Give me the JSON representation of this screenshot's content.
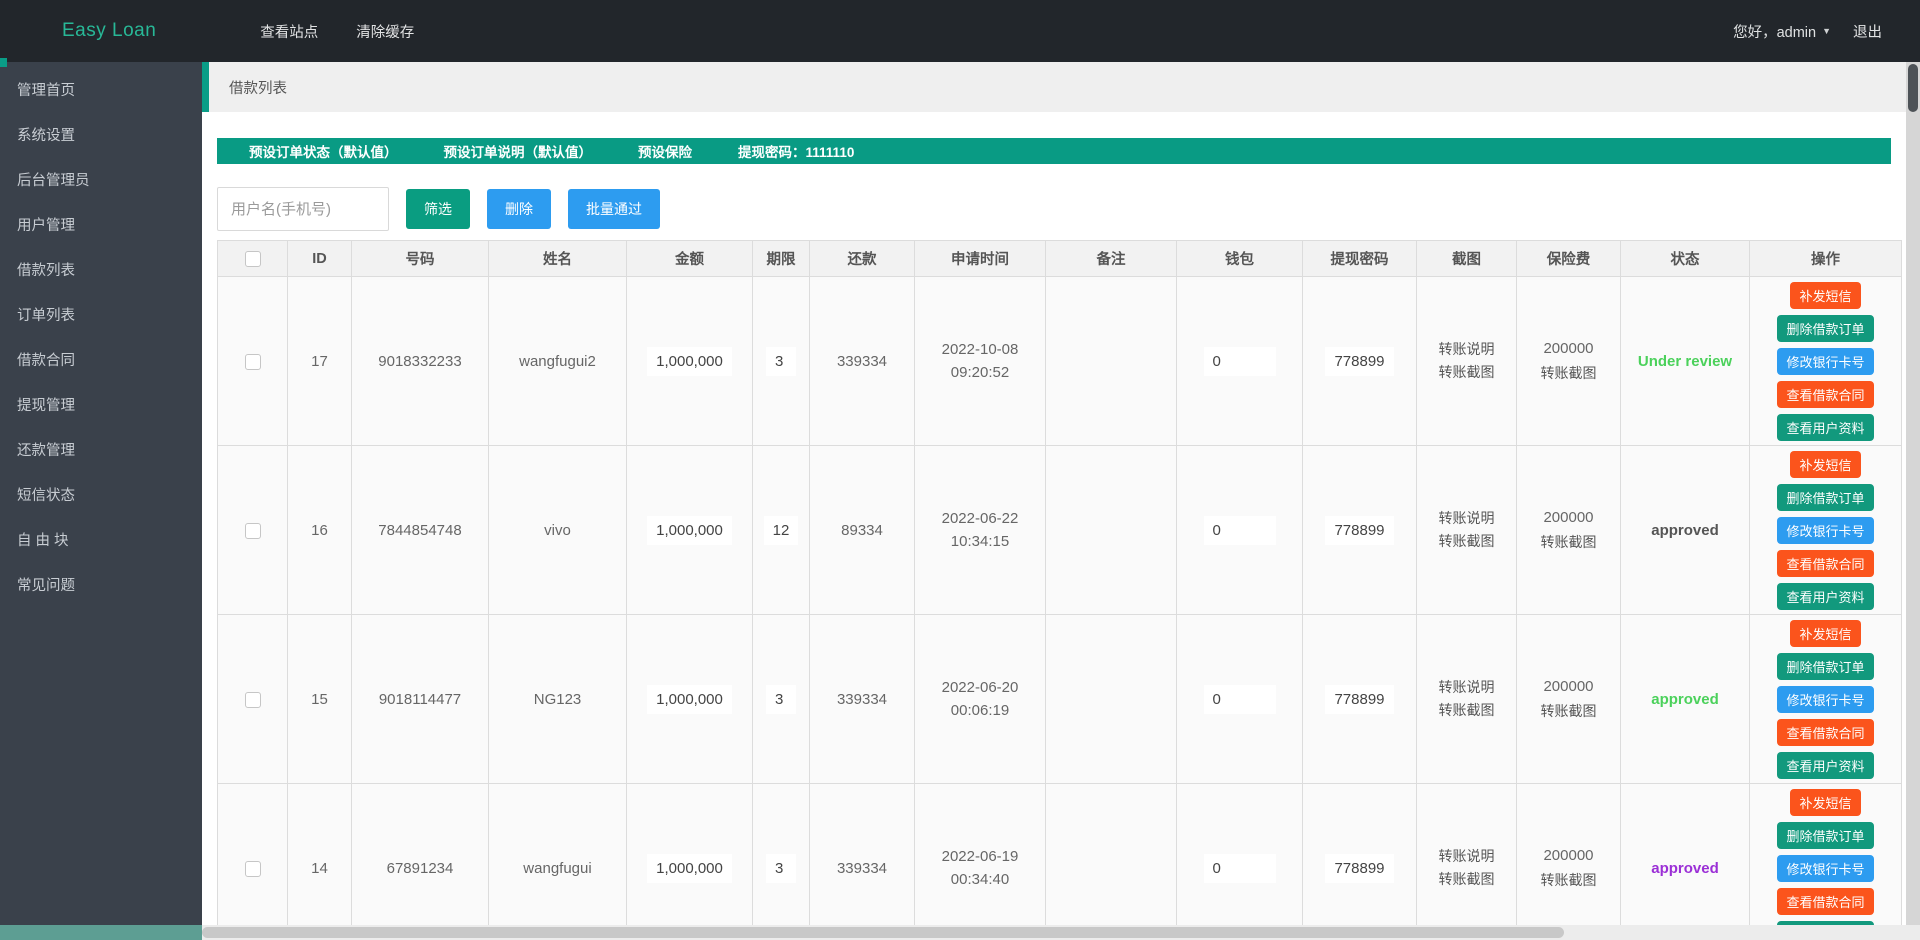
{
  "navbar": {
    "brand": "Easy Loan",
    "links": [
      {
        "label": "查看站点"
      },
      {
        "label": "清除缓存"
      }
    ],
    "greeting": "您好，admin",
    "logout": "退出"
  },
  "sidebar": {
    "items": [
      "管理首页",
      "系统设置",
      "后台管理员",
      "用户管理",
      "借款列表",
      "订单列表",
      "借款合同",
      "提现管理",
      "还款管理",
      "短信状态",
      "自 由 块",
      "常见问题"
    ]
  },
  "breadcrumb": {
    "title": "借款列表"
  },
  "banner": {
    "items": [
      "预设订单状态（默认值）",
      "预设订单说明（默认值）",
      "预设保险",
      "提现密码：1111110"
    ]
  },
  "filter": {
    "placeholder": "用户名(手机号)",
    "buttons": [
      {
        "label": "筛选",
        "color": "#0a9d81"
      },
      {
        "label": "删除",
        "color": "#2d9cf0"
      },
      {
        "label": "批量通过",
        "color": "#2d9cf0"
      }
    ]
  },
  "table": {
    "headers": [
      "",
      "ID",
      "号码",
      "姓名",
      "金额",
      "期限",
      "还款",
      "申请时间",
      "备注",
      "钱包",
      "提现密码",
      "截图",
      "保险费",
      "状态",
      "操作"
    ],
    "row_actions": [
      {
        "label": "补发短信",
        "color": "#fb541c"
      },
      {
        "label": "删除借款订单",
        "color": "#12997d"
      },
      {
        "label": "修改银行卡号",
        "color": "#2d9cf0"
      },
      {
        "label": "查看借款合同",
        "color": "#fb541c"
      },
      {
        "label": "查看用户资料",
        "color": "#12997d"
      }
    ],
    "rows": [
      {
        "id": "17",
        "phone": "9018332233",
        "name": "wangfugui2",
        "amount": "1,000,000",
        "term": "3",
        "repayment": "339334",
        "apply_date": "2022-10-08",
        "apply_time": "09:20:52",
        "note": "",
        "wallet": "0",
        "withdraw_password": "778899",
        "screenshot_links": [
          "转账说明",
          "转账截图"
        ],
        "insurance": [
          "200000",
          "转账截图"
        ],
        "status": {
          "text": "Under review",
          "color": "#4bd15b"
        }
      },
      {
        "id": "16",
        "phone": "7844854748",
        "name": "vivo",
        "amount": "1,000,000",
        "term": "12",
        "repayment": "89334",
        "apply_date": "2022-06-22",
        "apply_time": "10:34:15",
        "note": "",
        "wallet": "0",
        "withdraw_password": "778899",
        "screenshot_links": [
          "转账说明",
          "转账截图"
        ],
        "insurance": [
          "200000",
          "转账截图"
        ],
        "status": {
          "text": "approved",
          "color": "#555555"
        }
      },
      {
        "id": "15",
        "phone": "9018114477",
        "name": "NG123",
        "amount": "1,000,000",
        "term": "3",
        "repayment": "339334",
        "apply_date": "2022-06-20",
        "apply_time": "00:06:19",
        "note": "",
        "wallet": "0",
        "withdraw_password": "778899",
        "screenshot_links": [
          "转账说明",
          "转账截图"
        ],
        "insurance": [
          "200000",
          "转账截图"
        ],
        "status": {
          "text": "approved",
          "color": "#4bd15b"
        }
      },
      {
        "id": "14",
        "phone": "67891234",
        "name": "wangfugui",
        "amount": "1,000,000",
        "term": "3",
        "repayment": "339334",
        "apply_date": "2022-06-19",
        "apply_time": "00:34:40",
        "note": "",
        "wallet": "0",
        "withdraw_password": "778899",
        "screenshot_links": [
          "转账说明",
          "转账截图"
        ],
        "insurance": [
          "200000",
          "转账截图"
        ],
        "status": {
          "text": "approved",
          "color": "#9b2fd6"
        }
      }
    ]
  }
}
